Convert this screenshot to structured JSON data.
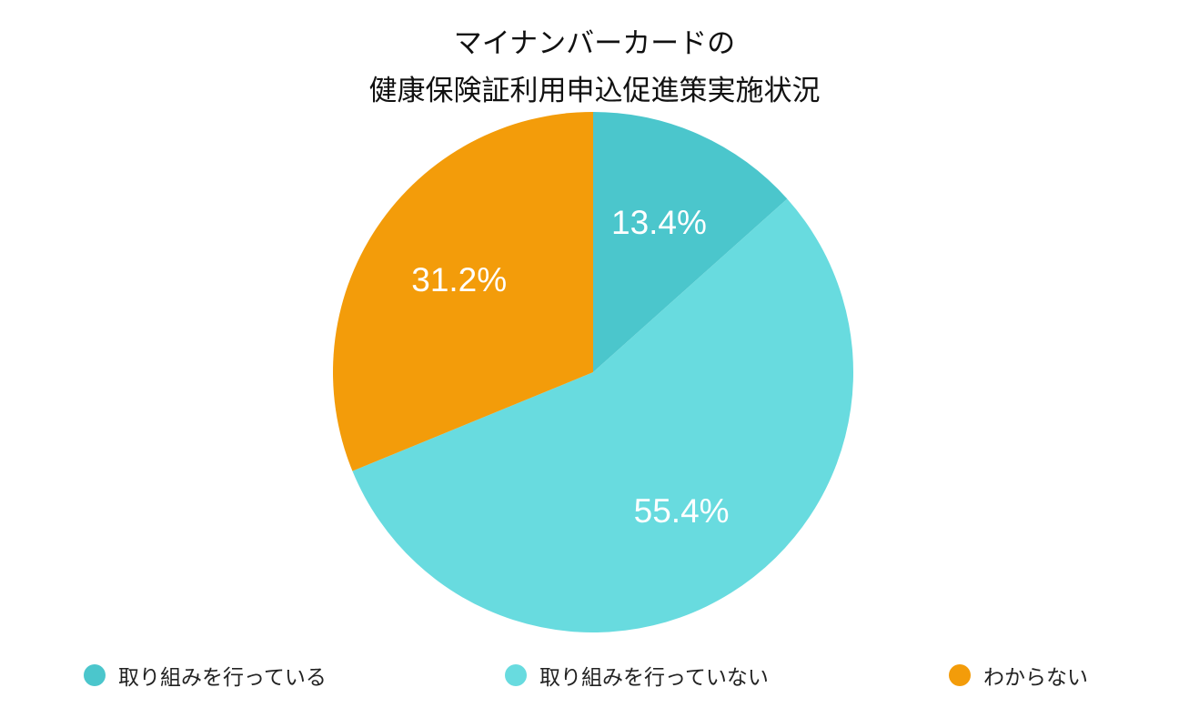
{
  "chart_data": {
    "type": "pie",
    "title_lines": [
      "マイナンバーカードの",
      "健康保険証利用申込促進策実施状況"
    ],
    "slices": [
      {
        "label": "取り組みを行っている",
        "value": 13.4,
        "display": "13.4%",
        "color": "#4BC6CC"
      },
      {
        "label": "取り組みを行っていない",
        "value": 55.4,
        "display": "55.4%",
        "color": "#68DBDF"
      },
      {
        "label": "わからない",
        "value": 31.2,
        "display": "31.2%",
        "color": "#F39C0A"
      }
    ],
    "start": "12 o'clock",
    "direction": "clockwise",
    "legend_position": "bottom"
  }
}
